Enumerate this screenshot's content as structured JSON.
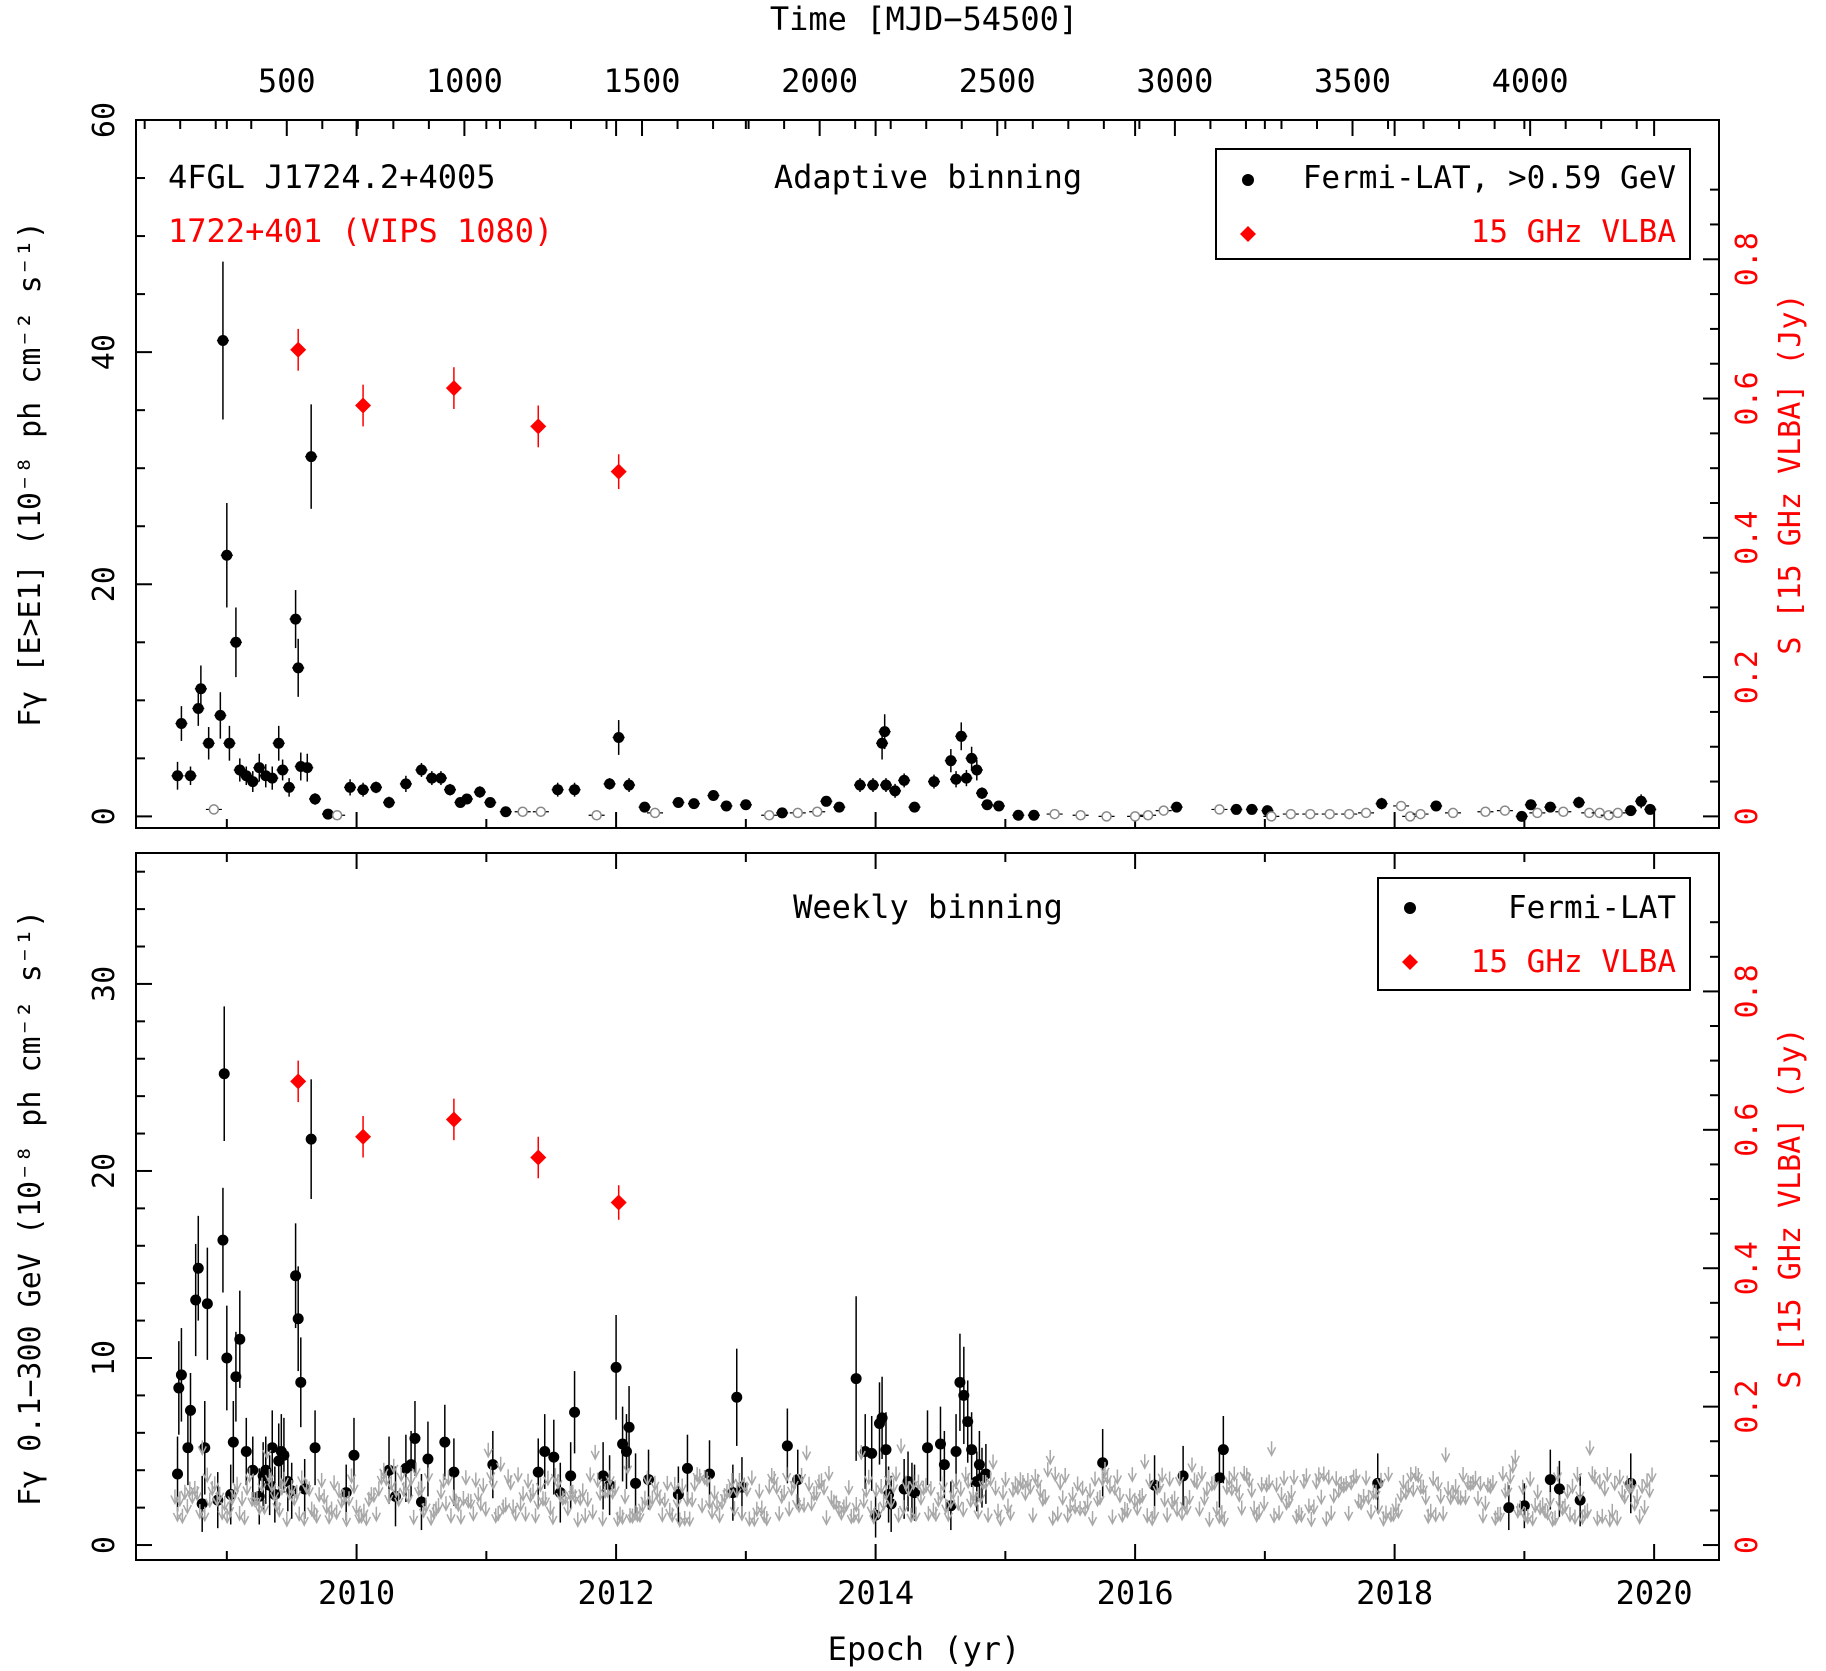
{
  "top_axis_label": "Time [MJD−54500]",
  "top_ticks": [
    "500",
    "1000",
    "1500",
    "2000",
    "2500",
    "3000",
    "3500",
    "4000"
  ],
  "top_tick_values": [
    500,
    1000,
    1500,
    2000,
    2500,
    3000,
    3500,
    4000
  ],
  "bottom_axis_label": "Epoch (yr)",
  "colors": {
    "fermi": "#000000",
    "vlba": "#ff0000",
    "upper_limit": "#a8a8a8",
    "open_point": "#888888"
  },
  "chart_data": [
    {
      "type": "scatter",
      "panel": "top",
      "title": "Adaptive binning",
      "source_name": "4FGL J1724.2+4005",
      "radio_name": "1722+401 (VIPS 1080)",
      "ylabel_left": "Fγ [E>E1] (10⁻⁸ ph cm⁻² s⁻¹)",
      "ylabel_right": "S [15 GHz VLBA] (Jy)",
      "xlabel": "Epoch (yr)",
      "xlim": [
        2008.3,
        2020.5
      ],
      "ylim_left": [
        -1,
        60
      ],
      "ylim_right": [
        -0.0167,
        1.0
      ],
      "yticks_left": [
        "0",
        "20",
        "40",
        "60"
      ],
      "yticks_right": [
        "0",
        "0.2",
        "0.4",
        "0.6",
        "0.8"
      ],
      "legend": [
        "Fermi-LAT, >0.59 GeV",
        "15 GHz VLBA"
      ],
      "legend_position": "top-right",
      "series": [
        {
          "name": "Fermi-LAT, >0.59 GeV",
          "marker": "filled-circle",
          "x": [
            2008.62,
            2008.65,
            2008.72,
            2008.78,
            2008.8,
            2008.86,
            2008.95,
            2008.97,
            2009.0,
            2009.02,
            2009.07,
            2009.1,
            2009.15,
            2009.2,
            2009.25,
            2009.3,
            2009.35,
            2009.4,
            2009.43,
            2009.48,
            2009.53,
            2009.55,
            2009.57,
            2009.62,
            2009.65,
            2009.68,
            2009.78,
            2009.95,
            2010.05,
            2010.15,
            2010.25,
            2010.38,
            2010.5,
            2010.58,
            2010.65,
            2010.72,
            2010.8,
            2010.85,
            2010.95,
            2011.03,
            2011.15,
            2011.55,
            2011.68,
            2011.95,
            2012.02,
            2012.1,
            2012.22,
            2012.48,
            2012.6,
            2012.75,
            2012.85,
            2013.0,
            2013.28,
            2013.62,
            2013.72,
            2013.88,
            2013.98,
            2014.05,
            2014.07,
            2014.08,
            2014.15,
            2014.22,
            2014.3,
            2014.45,
            2014.58,
            2014.62,
            2014.66,
            2014.7,
            2014.74,
            2014.78,
            2014.82,
            2014.86,
            2014.95,
            2015.1,
            2015.22,
            2016.32,
            2016.78,
            2016.9,
            2017.02,
            2017.9,
            2018.32,
            2018.98,
            2019.05,
            2019.2,
            2019.42,
            2019.82,
            2019.9,
            2019.97
          ],
          "y": [
            3.5,
            8.0,
            3.5,
            9.3,
            11.0,
            6.3,
            8.7,
            41.0,
            22.5,
            6.3,
            15.0,
            4.0,
            3.5,
            3.0,
            4.2,
            3.5,
            3.3,
            6.3,
            4.0,
            2.5,
            17.0,
            12.8,
            4.3,
            4.2,
            31.0,
            1.5,
            0.2,
            2.5,
            2.3,
            2.5,
            1.2,
            2.8,
            4.0,
            3.3,
            3.3,
            2.3,
            1.2,
            1.5,
            2.1,
            1.2,
            0.4,
            2.3,
            2.3,
            2.8,
            6.8,
            2.7,
            0.8,
            1.2,
            1.1,
            1.8,
            0.9,
            1.0,
            0.3,
            1.3,
            0.8,
            2.7,
            2.7,
            6.3,
            7.3,
            2.7,
            2.2,
            3.1,
            0.8,
            3.0,
            4.8,
            3.2,
            6.9,
            3.3,
            5.0,
            4.0,
            2.0,
            1.0,
            0.9,
            0.1,
            0.1,
            0.8,
            0.6,
            0.6,
            0.5,
            1.1,
            0.9,
            0.0,
            1.0,
            0.8,
            1.2,
            0.5,
            1.3,
            0.6
          ],
          "yerr": [
            1.2,
            1.5,
            0.8,
            1.5,
            2.0,
            1.4,
            2.0,
            6.8,
            4.5,
            1.5,
            3.0,
            1.0,
            0.8,
            0.9,
            1.2,
            1.0,
            1.0,
            1.5,
            0.9,
            0.8,
            2.5,
            2.5,
            1.2,
            1.2,
            4.5,
            0.5,
            0.3,
            0.7,
            0.6,
            0.5,
            0.5,
            0.7,
            0.6,
            0.6,
            0.6,
            0.5,
            0.4,
            0.4,
            0.5,
            0.4,
            0.3,
            0.6,
            0.6,
            0.5,
            1.5,
            0.6,
            0.4,
            0.4,
            0.4,
            0.4,
            0.3,
            0.3,
            0.3,
            0.4,
            0.3,
            0.6,
            0.6,
            1.4,
            1.5,
            0.6,
            0.6,
            0.6,
            0.3,
            0.6,
            1.0,
            0.7,
            1.2,
            0.7,
            1.0,
            0.9,
            0.5,
            0.4,
            0.4,
            0.3,
            0.3,
            0.3,
            0.3,
            0.3,
            0.3,
            0.5,
            0.4,
            0.3,
            0.4,
            0.3,
            0.5,
            0.3,
            0.6,
            0.4
          ]
        },
        {
          "name": "",
          "marker": "open-circle",
          "x": [
            2008.9,
            2009.85,
            2011.28,
            2011.42,
            2011.85,
            2012.3,
            2013.18,
            2013.4,
            2013.55,
            2015.38,
            2015.58,
            2015.78,
            2016.0,
            2016.1,
            2016.22,
            2016.65,
            2017.05,
            2017.2,
            2017.35,
            2017.5,
            2017.65,
            2017.78,
            2018.05,
            2018.12,
            2018.2,
            2018.45,
            2018.7,
            2018.85,
            2019.1,
            2019.3,
            2019.5,
            2019.58,
            2019.65,
            2019.72
          ],
          "y": [
            0.6,
            0.1,
            0.4,
            0.4,
            0.1,
            0.3,
            0.1,
            0.3,
            0.4,
            0.2,
            0.1,
            0.0,
            0.0,
            0.1,
            0.5,
            0.6,
            0.0,
            0.2,
            0.2,
            0.2,
            0.2,
            0.3,
            0.9,
            0.0,
            0.2,
            0.3,
            0.4,
            0.5,
            0.3,
            0.4,
            0.3,
            0.3,
            0.1,
            0.3
          ]
        },
        {
          "name": "15 GHz VLBA",
          "marker": "diamond",
          "axis": "right",
          "x": [
            2009.55,
            2010.05,
            2010.75,
            2011.4,
            2012.02
          ],
          "y": [
            0.67,
            0.59,
            0.615,
            0.56,
            0.495
          ],
          "yerr": [
            0.03,
            0.03,
            0.03,
            0.03,
            0.025
          ]
        }
      ]
    },
    {
      "type": "scatter",
      "panel": "bottom",
      "title": "Weekly binning",
      "ylabel_left": "Fγ 0.1−300 GeV (10⁻⁸ ph cm⁻² s⁻¹)",
      "ylabel_right": "S [15 GHz VLBA] (Jy)",
      "xlabel": "Epoch (yr)",
      "xlim": [
        2008.3,
        2020.5
      ],
      "ylim_left": [
        -0.8,
        37
      ],
      "ylim_right": [
        -0.0216,
        1.0
      ],
      "xticks": [
        "2010",
        "2012",
        "2014",
        "2016",
        "2018",
        "2020"
      ],
      "yticks_left": [
        "0",
        "10",
        "20",
        "30"
      ],
      "yticks_right": [
        "0",
        "0.2",
        "0.4",
        "0.6",
        "0.8"
      ],
      "legend": [
        "Fermi-LAT",
        "15 GHz VLBA"
      ],
      "legend_position": "top-right",
      "series": [
        {
          "name": "Fermi-LAT",
          "marker": "filled-circle",
          "x": [
            2008.62,
            2008.63,
            2008.65,
            2008.7,
            2008.72,
            2008.76,
            2008.78,
            2008.81,
            2008.83,
            2008.85,
            2008.93,
            2008.97,
            2008.98,
            2009.0,
            2009.03,
            2009.05,
            2009.07,
            2009.1,
            2009.15,
            2009.2,
            2009.25,
            2009.28,
            2009.3,
            2009.33,
            2009.35,
            2009.37,
            2009.4,
            2009.42,
            2009.44,
            2009.47,
            2009.5,
            2009.53,
            2009.55,
            2009.57,
            2009.6,
            2009.65,
            2009.68,
            2009.92,
            2009.98,
            2010.25,
            2010.3,
            2010.38,
            2010.42,
            2010.45,
            2010.5,
            2010.55,
            2010.68,
            2010.75,
            2011.05,
            2011.4,
            2011.45,
            2011.52,
            2011.57,
            2011.65,
            2011.68,
            2011.9,
            2011.95,
            2012.0,
            2012.05,
            2012.08,
            2012.1,
            2012.15,
            2012.25,
            2012.48,
            2012.55,
            2012.72,
            2012.9,
            2012.93,
            2012.97,
            2013.32,
            2013.4,
            2013.85,
            2013.92,
            2013.97,
            2014.0,
            2014.03,
            2014.05,
            2014.08,
            2014.1,
            2014.12,
            2014.22,
            2014.25,
            2014.28,
            2014.3,
            2014.4,
            2014.5,
            2014.53,
            2014.58,
            2014.62,
            2014.65,
            2014.68,
            2014.71,
            2014.74,
            2014.78,
            2014.8,
            2014.82,
            2014.85,
            2015.75,
            2016.15,
            2016.37,
            2016.65,
            2016.68,
            2017.87,
            2018.88,
            2019.0,
            2019.2,
            2019.27,
            2019.43,
            2019.82
          ],
          "y": [
            3.8,
            8.4,
            9.1,
            5.2,
            7.2,
            13.1,
            14.8,
            2.2,
            5.2,
            12.9,
            2.4,
            16.3,
            25.2,
            10.0,
            2.7,
            5.5,
            9.0,
            11.0,
            5.0,
            4.0,
            2.6,
            3.7,
            4.0,
            3.2,
            5.2,
            2.7,
            4.5,
            5.0,
            4.8,
            3.4,
            2.9,
            14.4,
            12.1,
            8.7,
            3.0,
            21.7,
            5.2,
            2.8,
            4.8,
            4.0,
            2.6,
            4.1,
            4.3,
            5.7,
            2.3,
            4.6,
            5.5,
            3.9,
            4.3,
            3.9,
            5.0,
            4.7,
            2.8,
            3.7,
            7.1,
            3.7,
            3.2,
            9.5,
            5.4,
            5.0,
            6.3,
            3.3,
            3.5,
            2.7,
            4.1,
            3.8,
            2.8,
            7.9,
            3.1,
            5.3,
            3.5,
            8.9,
            5.0,
            4.9,
            1.6,
            6.5,
            6.8,
            5.1,
            2.7,
            2.2,
            3.0,
            3.4,
            2.9,
            2.8,
            5.2,
            5.4,
            4.3,
            2.1,
            5.0,
            8.7,
            8.0,
            6.6,
            5.1,
            3.4,
            4.3,
            3.6,
            3.8,
            4.4,
            3.2,
            3.7,
            3.6,
            5.1,
            3.3,
            2.0,
            2.1,
            3.5,
            3.0,
            2.4,
            3.3
          ],
          "yerr": [
            2.0,
            2.5,
            2.5,
            2.0,
            2.0,
            3.0,
            2.8,
            1.5,
            2.5,
            3.0,
            1.5,
            2.8,
            3.6,
            2.8,
            1.6,
            2.2,
            2.4,
            2.6,
            1.8,
            1.8,
            1.5,
            1.8,
            1.8,
            1.6,
            2.0,
            1.5,
            2.0,
            2.0,
            2.0,
            1.6,
            1.5,
            2.8,
            2.8,
            2.4,
            1.6,
            3.2,
            2.0,
            1.5,
            2.0,
            1.8,
            1.6,
            1.8,
            1.8,
            2.0,
            1.5,
            2.0,
            2.0,
            1.8,
            1.8,
            1.8,
            2.0,
            2.0,
            1.6,
            1.8,
            2.2,
            1.8,
            1.6,
            2.8,
            2.0,
            2.0,
            2.2,
            1.6,
            1.6,
            1.5,
            1.8,
            1.8,
            1.5,
            2.6,
            1.6,
            2.0,
            1.6,
            4.4,
            2.0,
            2.0,
            1.2,
            2.2,
            2.2,
            2.0,
            1.5,
            1.5,
            1.6,
            1.6,
            1.5,
            1.5,
            2.0,
            2.0,
            1.8,
            1.3,
            2.0,
            2.6,
            2.6,
            2.2,
            2.0,
            1.6,
            1.8,
            1.6,
            1.6,
            1.8,
            1.6,
            1.6,
            1.6,
            1.8,
            1.6,
            1.2,
            1.2,
            1.6,
            1.5,
            1.4,
            1.6
          ]
        },
        {
          "name": "",
          "marker": "upper-limit-arrow",
          "x_range": [
            2008.6,
            2020.0
          ],
          "typical_y": [
            1.0,
            3.5
          ]
        },
        {
          "name": "15 GHz VLBA",
          "marker": "diamond",
          "axis": "right",
          "x": [
            2009.55,
            2010.05,
            2010.75,
            2011.4,
            2012.02
          ],
          "y": [
            0.67,
            0.59,
            0.615,
            0.56,
            0.495
          ],
          "yerr": [
            0.03,
            0.03,
            0.03,
            0.03,
            0.025
          ]
        }
      ]
    }
  ]
}
